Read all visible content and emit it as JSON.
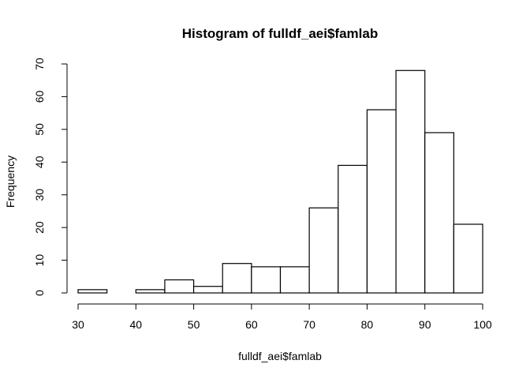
{
  "chart_data": {
    "type": "bar",
    "title": "Histogram of fulldf_aei$famlab",
    "xlabel": "fulldf_aei$famlab",
    "ylabel": "Frequency",
    "bin_edges": [
      30,
      35,
      40,
      45,
      50,
      55,
      60,
      65,
      70,
      75,
      80,
      85,
      90,
      95,
      100
    ],
    "values": [
      1,
      0,
      1,
      4,
      2,
      9,
      8,
      8,
      26,
      39,
      56,
      68,
      49,
      21
    ],
    "xlim": [
      30,
      100
    ],
    "ylim": [
      0,
      70
    ],
    "x_ticks": [
      30,
      40,
      50,
      60,
      70,
      80,
      90,
      100
    ],
    "y_ticks": [
      0,
      10,
      20,
      30,
      40,
      50,
      60,
      70
    ],
    "grid": false,
    "colors": {
      "bar_fill": "#ffffff",
      "bar_stroke": "#000000"
    }
  }
}
